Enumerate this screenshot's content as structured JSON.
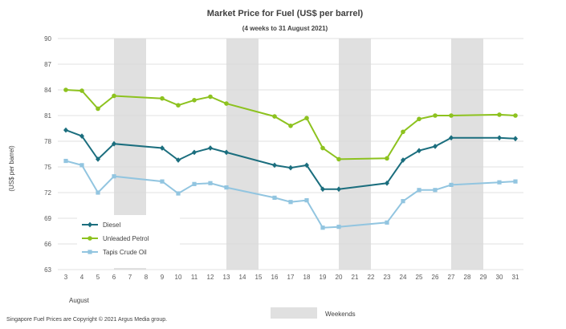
{
  "chart_data": {
    "type": "line",
    "title": "Market Price for Fuel (US$  per barrel)",
    "subtitle": "(4 weeks to 31 August 2021)",
    "ylabel": "(US$ per barrel)",
    "xlabel": "August",
    "ylim": [
      63,
      90
    ],
    "yticks": [
      63,
      66,
      69,
      72,
      75,
      78,
      81,
      84,
      87,
      90
    ],
    "categories": [
      "3",
      "4",
      "5",
      "6",
      "7",
      "8",
      "9",
      "10",
      "11",
      "12",
      "13",
      "14",
      "15",
      "16",
      "17",
      "18",
      "19",
      "20",
      "21",
      "22",
      "23",
      "24",
      "25",
      "26",
      "27",
      "28",
      "29",
      "30",
      "31"
    ],
    "weekend_bands": [
      [
        "6",
        "8"
      ],
      [
        "13",
        "15"
      ],
      [
        "20",
        "22"
      ],
      [
        "27",
        "29"
      ]
    ],
    "weekend_label": "Weekends",
    "weekend_color": "#e0e0e0",
    "series": [
      {
        "name": "Diesel",
        "color": "#1b6e7e",
        "marker": "diamond",
        "points": [
          {
            "x": "3",
            "y": 79.3
          },
          {
            "x": "4",
            "y": 78.6
          },
          {
            "x": "5",
            "y": 75.9
          },
          {
            "x": "6",
            "y": 77.7
          },
          {
            "x": "9",
            "y": 77.2
          },
          {
            "x": "10",
            "y": 75.8
          },
          {
            "x": "11",
            "y": 76.7
          },
          {
            "x": "12",
            "y": 77.2
          },
          {
            "x": "13",
            "y": 76.7
          },
          {
            "x": "16",
            "y": 75.2
          },
          {
            "x": "17",
            "y": 74.9
          },
          {
            "x": "18",
            "y": 75.2
          },
          {
            "x": "19",
            "y": 72.4
          },
          {
            "x": "20",
            "y": 72.4
          },
          {
            "x": "23",
            "y": 73.1
          },
          {
            "x": "24",
            "y": 75.8
          },
          {
            "x": "25",
            "y": 76.9
          },
          {
            "x": "26",
            "y": 77.4
          },
          {
            "x": "27",
            "y": 78.4
          },
          {
            "x": "30",
            "y": 78.4
          },
          {
            "x": "31",
            "y": 78.3
          }
        ]
      },
      {
        "name": "Unleaded Petrol",
        "color": "#8dc21f",
        "marker": "circle",
        "points": [
          {
            "x": "3",
            "y": 84.0
          },
          {
            "x": "4",
            "y": 83.9
          },
          {
            "x": "5",
            "y": 81.8
          },
          {
            "x": "6",
            "y": 83.3
          },
          {
            "x": "9",
            "y": 83.0
          },
          {
            "x": "10",
            "y": 82.2
          },
          {
            "x": "11",
            "y": 82.8
          },
          {
            "x": "12",
            "y": 83.2
          },
          {
            "x": "13",
            "y": 82.4
          },
          {
            "x": "16",
            "y": 80.9
          },
          {
            "x": "17",
            "y": 79.8
          },
          {
            "x": "18",
            "y": 80.7
          },
          {
            "x": "19",
            "y": 77.2
          },
          {
            "x": "20",
            "y": 75.9
          },
          {
            "x": "23",
            "y": 76.0
          },
          {
            "x": "24",
            "y": 79.1
          },
          {
            "x": "25",
            "y": 80.6
          },
          {
            "x": "26",
            "y": 81.0
          },
          {
            "x": "27",
            "y": 81.0
          },
          {
            "x": "30",
            "y": 81.1
          },
          {
            "x": "31",
            "y": 81.0
          }
        ]
      },
      {
        "name": "Tapis Crude Oil",
        "color": "#92c5e0",
        "marker": "square",
        "points": [
          {
            "x": "3",
            "y": 75.7
          },
          {
            "x": "4",
            "y": 75.2
          },
          {
            "x": "5",
            "y": 72.0
          },
          {
            "x": "6",
            "y": 73.9
          },
          {
            "x": "9",
            "y": 73.3
          },
          {
            "x": "10",
            "y": 71.9
          },
          {
            "x": "11",
            "y": 73.0
          },
          {
            "x": "12",
            "y": 73.1
          },
          {
            "x": "13",
            "y": 72.6
          },
          {
            "x": "16",
            "y": 71.4
          },
          {
            "x": "17",
            "y": 70.9
          },
          {
            "x": "18",
            "y": 71.1
          },
          {
            "x": "19",
            "y": 67.9
          },
          {
            "x": "20",
            "y": 68.0
          },
          {
            "x": "23",
            "y": 68.5
          },
          {
            "x": "24",
            "y": 71.0
          },
          {
            "x": "25",
            "y": 72.3
          },
          {
            "x": "26",
            "y": 72.3
          },
          {
            "x": "27",
            "y": 72.9
          },
          {
            "x": "30",
            "y": 73.2
          },
          {
            "x": "31",
            "y": 73.3
          }
        ]
      }
    ]
  },
  "footer": {
    "copyright": "Singapore  Fuel Prices are Copyright  © 2021  Argus Media group."
  }
}
